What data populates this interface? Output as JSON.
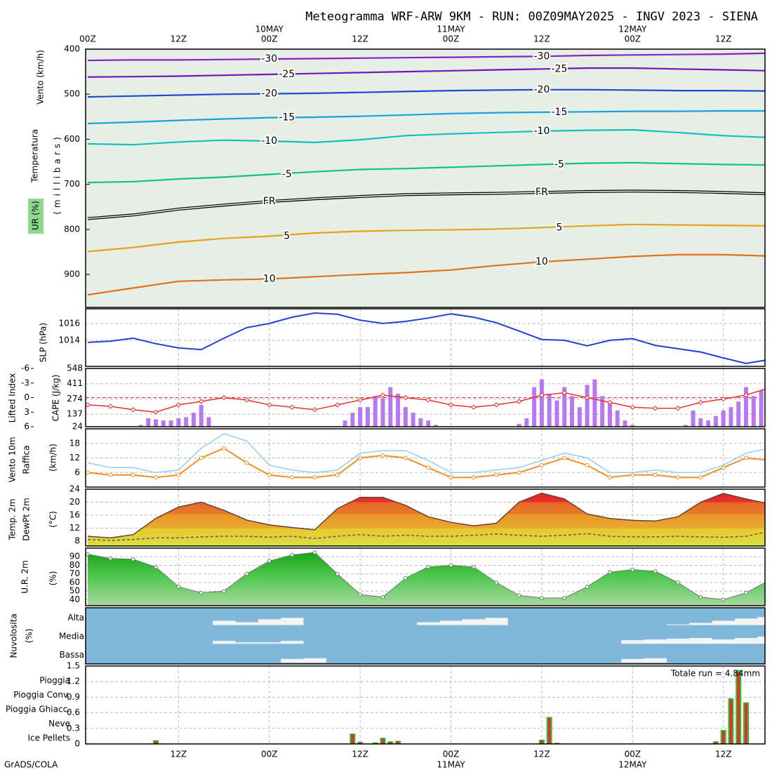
{
  "title": "Meteogramma WRF-ARW 9KM - RUN: 00Z09MAY2025 - INGV 2023 - SIENA",
  "footer": "GrADS/COLA",
  "time_axis": {
    "xlim": [
      0,
      89.5
    ],
    "top_ticks": [
      {
        "value": 0,
        "label": "00Z"
      },
      {
        "value": 12,
        "label": "12Z"
      },
      {
        "value": 24,
        "label": "00Z"
      },
      {
        "value": 36,
        "label": "12Z"
      },
      {
        "value": 48,
        "label": "00Z"
      },
      {
        "value": 60,
        "label": "12Z"
      },
      {
        "value": 72,
        "label": "00Z"
      },
      {
        "value": 84,
        "label": "12Z"
      }
    ],
    "top_dates": [
      {
        "value": 24,
        "label": "10MAY"
      },
      {
        "value": 48,
        "label": "11MAY"
      },
      {
        "value": 72,
        "label": "12MAY"
      }
    ],
    "bottom_ticks": [
      {
        "value": 12,
        "label": "12Z"
      },
      {
        "value": 24,
        "label": "00Z"
      },
      {
        "value": 36,
        "label": "12Z"
      },
      {
        "value": 48,
        "label": "00Z"
      },
      {
        "value": 60,
        "label": "12Z"
      },
      {
        "value": 72,
        "label": "00Z"
      },
      {
        "value": 84,
        "label": "12Z"
      }
    ],
    "bottom_dates": [
      {
        "value": 48,
        "label": "11MAY"
      },
      {
        "value": 72,
        "label": "12MAY"
      }
    ]
  },
  "chart_data": [
    {
      "type": "contour",
      "labels": [
        "Vento (km/h)",
        "Temperatura",
        "(millibars)",
        "UR (%)"
      ],
      "ylim": [
        973,
        400
      ],
      "yticks": [
        400,
        500,
        600,
        700,
        800,
        900
      ],
      "x": [
        0,
        6,
        12,
        18,
        24,
        30,
        36,
        42,
        48,
        54,
        60,
        66,
        72,
        78,
        84,
        90
      ],
      "series": [
        {
          "name": "-30",
          "color": "#8a1ec8",
          "values": [
            425,
            424,
            424,
            423,
            422,
            421,
            420,
            419,
            418,
            417,
            416,
            414,
            413,
            412,
            411,
            409
          ]
        },
        {
          "name": "-25",
          "color": "#7a10c0",
          "values": [
            462,
            461,
            460,
            458,
            456,
            454,
            452,
            450,
            448,
            446,
            444,
            442,
            442,
            444,
            446,
            448
          ]
        },
        {
          "name": "-20",
          "color": "#2048d0",
          "values": [
            506,
            504,
            502,
            500,
            499,
            498,
            496,
            494,
            492,
            491,
            490,
            490,
            491,
            492,
            492,
            493
          ]
        },
        {
          "name": "-15",
          "color": "#18a0e0",
          "values": [
            565,
            562,
            558,
            555,
            552,
            551,
            549,
            546,
            543,
            541,
            540,
            539,
            538,
            538,
            537,
            537
          ]
        },
        {
          "name": "-10",
          "color": "#10c0c0",
          "values": [
            610,
            612,
            606,
            602,
            604,
            607,
            601,
            592,
            588,
            585,
            582,
            580,
            579,
            585,
            592,
            596
          ]
        },
        {
          "name": "-5",
          "color": "#10c090",
          "values": [
            696,
            694,
            688,
            684,
            678,
            672,
            667,
            665,
            662,
            659,
            656,
            653,
            652,
            654,
            656,
            657
          ]
        },
        {
          "name": "FR",
          "color": "#000000",
          "values": [
            776,
            768,
            755,
            746,
            738,
            732,
            727,
            723,
            721,
            720,
            718,
            716,
            715,
            716,
            718,
            721
          ]
        },
        {
          "name": "5",
          "color": "#e8a020",
          "values": [
            849,
            840,
            828,
            820,
            815,
            808,
            804,
            802,
            801,
            799,
            796,
            792,
            789,
            790,
            791,
            792
          ]
        },
        {
          "name": "10",
          "color": "#e07020",
          "values": [
            945,
            930,
            915,
            912,
            910,
            905,
            900,
            896,
            890,
            880,
            872,
            866,
            860,
            856,
            856,
            859
          ]
        }
      ]
    },
    {
      "type": "line",
      "ylabel": "SLP (hPa)",
      "color": "#2040d8",
      "ylim": [
        1010.9,
        1017.75
      ],
      "yticks": [
        1014,
        1016
      ],
      "x": [
        0,
        3,
        6,
        9,
        12,
        15,
        18,
        21,
        24,
        27,
        30,
        33,
        36,
        39,
        42,
        45,
        48,
        51,
        54,
        57,
        60,
        63,
        66,
        69,
        72,
        75,
        78,
        81,
        84,
        87,
        90
      ],
      "values": [
        1013.75,
        1013.9,
        1014.25,
        1013.6,
        1013.1,
        1012.9,
        1014.25,
        1015.5,
        1016,
        1016.75,
        1017.25,
        1017.1,
        1016.4,
        1016,
        1016.25,
        1016.65,
        1017.15,
        1016.75,
        1016.1,
        1015.1,
        1014.1,
        1014,
        1013.35,
        1014,
        1014.2,
        1013.4,
        1013,
        1012.6,
        1011.9,
        1011.25,
        1011.7
      ]
    },
    {
      "type": "cape",
      "ylabel": "CAPE (J/kg)",
      "y2label": "Lifted Index",
      "ylim": [
        24,
        548
      ],
      "yticks": [
        24,
        137,
        274,
        411,
        548
      ],
      "y2lim": [
        6,
        -6
      ],
      "y2ticks": [
        -6,
        -3,
        0,
        3,
        6
      ],
      "series": [
        {
          "color": "#b878f0",
          "x": [
            7,
            8,
            9,
            10,
            11,
            12,
            13,
            14,
            15,
            16,
            34,
            35,
            36,
            37,
            38,
            39,
            40,
            41,
            42,
            43,
            44,
            45,
            46,
            57,
            58,
            59,
            60,
            61,
            62,
            63,
            64,
            65,
            66,
            67,
            68,
            69,
            70,
            71,
            72,
            79,
            80,
            81,
            82,
            83,
            84,
            85,
            86,
            87,
            88,
            89
          ],
          "values": [
            40,
            100,
            90,
            80,
            80,
            100,
            110,
            150,
            220,
            110,
            80,
            150,
            200,
            200,
            300,
            280,
            380,
            320,
            200,
            150,
            100,
            80,
            40,
            50,
            100,
            380,
            450,
            320,
            260,
            380,
            300,
            200,
            400,
            450,
            300,
            250,
            170,
            80,
            40,
            40,
            170,
            100,
            80,
            120,
            170,
            200,
            250,
            380,
            300,
            350
          ]
        },
        {
          "color": "#e83030",
          "axis": "y2",
          "x": [
            0,
            3,
            6,
            9,
            12,
            15,
            18,
            21,
            24,
            27,
            30,
            33,
            36,
            39,
            42,
            45,
            48,
            51,
            54,
            57,
            60,
            63,
            66,
            69,
            72,
            75,
            78,
            81,
            84,
            87,
            90
          ],
          "values": [
            1.5,
            1.8,
            2.5,
            3,
            1.5,
            0.8,
            0,
            0.5,
            1.5,
            2,
            2.5,
            1.5,
            0.5,
            -0.5,
            0,
            0.5,
            1.5,
            2,
            1.5,
            0.8,
            -0.5,
            -1,
            0,
            1,
            2,
            2.2,
            2.2,
            1,
            0.3,
            -0.5,
            -2
          ]
        }
      ]
    },
    {
      "type": "wind",
      "ylabel": "(km/h)",
      "ylim": [
        0,
        24
      ],
      "yticks": [
        6,
        12,
        18
      ],
      "x": [
        0,
        3,
        6,
        9,
        12,
        15,
        18,
        21,
        24,
        27,
        30,
        33,
        36,
        39,
        42,
        45,
        48,
        51,
        54,
        57,
        60,
        63,
        66,
        69,
        72,
        75,
        78,
        81,
        84,
        87,
        90
      ],
      "series": [
        {
          "name": "Vento 10m",
          "color": "#f09020",
          "values": [
            6,
            5,
            5,
            4,
            5,
            12,
            16,
            10,
            5,
            4,
            4,
            5,
            12,
            13,
            12,
            8,
            4,
            4,
            5,
            6,
            9,
            12,
            9,
            4,
            5,
            5,
            4,
            4,
            8,
            12,
            11
          ]
        },
        {
          "name": "Raffica",
          "color": "#90d0f0",
          "values": [
            10,
            8,
            8,
            6,
            7,
            16,
            22,
            19,
            9,
            7,
            6,
            7,
            14,
            15,
            15,
            11,
            6,
            6,
            7,
            8,
            11,
            14,
            12,
            6,
            6,
            7,
            6,
            6,
            9,
            14,
            16
          ]
        }
      ]
    },
    {
      "type": "temperature",
      "ylabel": "(°C)",
      "ylim": [
        6.5,
        24
      ],
      "yticks": [
        8,
        12,
        16,
        20,
        24
      ],
      "x": [
        0,
        3,
        6,
        9,
        12,
        15,
        18,
        21,
        24,
        27,
        30,
        33,
        36,
        39,
        42,
        45,
        48,
        51,
        54,
        57,
        60,
        63,
        66,
        69,
        72,
        75,
        78,
        81,
        84,
        87,
        90
      ],
      "series": [
        {
          "name": "Temp. 2m",
          "color": "#6a4030",
          "values": [
            9.5,
            9,
            10,
            15,
            18.5,
            20,
            17.5,
            14.5,
            13,
            12.2,
            11.5,
            18,
            21.5,
            21.5,
            19,
            15.5,
            13.8,
            12.7,
            13.5,
            20,
            22.8,
            21,
            16.4,
            15,
            14.4,
            14.2,
            15.5,
            20,
            22.7,
            21,
            19.5
          ]
        },
        {
          "name": "DewPt 2m",
          "color": "#7a4a6a",
          "values": [
            8.5,
            8.2,
            8.5,
            9,
            9,
            9.3,
            9.5,
            9.5,
            9.2,
            9.5,
            8.8,
            9.5,
            10,
            9.5,
            9.8,
            9.5,
            9.5,
            9.8,
            10.2,
            9.8,
            9.5,
            9.8,
            10.3,
            9.5,
            9.3,
            9.3,
            9.5,
            9.3,
            9.2,
            9.5,
            11
          ]
        }
      ]
    },
    {
      "type": "humidity",
      "ylabel": "(%)",
      "ylim": [
        33,
        100
      ],
      "yticks": [
        40,
        50,
        60,
        70,
        80,
        90
      ],
      "x": [
        0,
        3,
        6,
        9,
        12,
        15,
        18,
        21,
        24,
        27,
        30,
        33,
        36,
        39,
        42,
        45,
        48,
        51,
        54,
        57,
        60,
        63,
        66,
        69,
        72,
        75,
        78,
        81,
        84,
        87,
        90
      ],
      "series": [
        {
          "name": "U.R. 2m",
          "color": "#40c040",
          "values": [
            93,
            88,
            87,
            78,
            55,
            48,
            50,
            70,
            85,
            92,
            95,
            70,
            46,
            43,
            65,
            78,
            80,
            78,
            60,
            45,
            42,
            42,
            55,
            72,
            75,
            73,
            60,
            43,
            40,
            48,
            62
          ]
        }
      ]
    },
    {
      "type": "cloud",
      "ylabel": "Nuvolosita",
      "unit_label": "(%)",
      "ylim": [
        0,
        100
      ],
      "x": [
        0,
        3,
        6,
        9,
        12,
        15,
        18,
        21,
        24,
        27,
        30,
        33,
        36,
        39,
        42,
        45,
        48,
        51,
        54,
        57,
        60,
        63,
        66,
        69,
        72,
        75,
        78,
        81,
        84,
        87,
        90
      ],
      "series": [
        {
          "name": "Alta",
          "color": "#f4f4f4",
          "values": [
            0,
            0,
            0,
            0,
            0,
            0,
            30,
            20,
            40,
            50,
            0,
            0,
            0,
            0,
            0,
            20,
            30,
            40,
            50,
            0,
            0,
            0,
            0,
            0,
            0,
            0,
            5,
            15,
            30,
            45,
            55
          ]
        },
        {
          "name": "Media",
          "color": "#f4f4f4",
          "values": [
            0,
            0,
            0,
            0,
            0,
            0,
            20,
            10,
            10,
            20,
            0,
            0,
            0,
            0,
            0,
            0,
            0,
            0,
            0,
            0,
            0,
            0,
            0,
            0,
            25,
            30,
            35,
            40,
            30,
            40,
            50
          ]
        },
        {
          "name": "Bassa",
          "color": "#f4f4f4",
          "values": [
            0,
            0,
            0,
            0,
            0,
            0,
            0,
            0,
            0,
            25,
            30,
            0,
            0,
            0,
            0,
            0,
            0,
            0,
            0,
            0,
            0,
            0,
            0,
            0,
            25,
            30,
            0,
            0,
            0,
            0,
            0
          ]
        }
      ]
    },
    {
      "type": "precipitation",
      "annotation": "Totale run = 4.84mm",
      "ylim": [
        0,
        1.5
      ],
      "yticks": [
        0,
        0.3,
        0.6,
        0.9,
        1.2,
        1.5
      ],
      "series": [
        {
          "name": "Pioggia",
          "color": "#30c030",
          "x": [
            9,
            35,
            36,
            38,
            39,
            40,
            41,
            60,
            61,
            62,
            83,
            84,
            85,
            86,
            87
          ],
          "values": [
            0.07,
            0.2,
            0.04,
            0.03,
            0.12,
            0.05,
            0.06,
            0.08,
            0.52,
            0.02,
            0.05,
            0.27,
            0.88,
            1.42,
            0.8
          ]
        },
        {
          "name": "Pioggia Conv.",
          "color": "#e03030",
          "x": [
            9,
            35,
            36,
            38,
            39,
            40,
            41,
            60,
            61,
            62,
            83,
            84,
            85,
            86,
            87
          ],
          "values": [
            0.06,
            0.18,
            0.03,
            0.02,
            0.1,
            0.04,
            0.05,
            0.07,
            0.5,
            0.02,
            0.04,
            0.25,
            0.85,
            1.38,
            0.78
          ]
        },
        {
          "name": "Pioggia Ghiacc.",
          "color": "#f07010",
          "x": [],
          "values": []
        },
        {
          "name": "Neve",
          "color": "#2020e0",
          "x": [],
          "values": []
        },
        {
          "name": "Ice Pellets",
          "color": "#20c0c0",
          "x": [],
          "values": []
        }
      ]
    }
  ]
}
